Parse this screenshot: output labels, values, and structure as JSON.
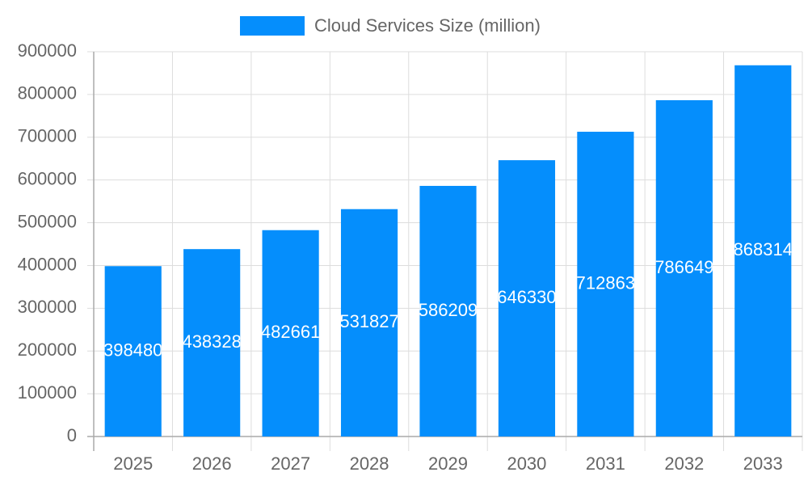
{
  "chart_data": {
    "type": "bar",
    "legend_label": "Cloud Services Size (million)",
    "categories": [
      "2025",
      "2026",
      "2027",
      "2028",
      "2029",
      "2030",
      "2031",
      "2032",
      "2033"
    ],
    "values": [
      398480,
      438328,
      482661,
      531827,
      586209,
      646330,
      712863,
      786649,
      868314
    ],
    "color": "#058efc",
    "ylim": [
      0,
      900000
    ],
    "yticks": [
      0,
      100000,
      200000,
      300000,
      400000,
      500000,
      600000,
      700000,
      800000,
      900000
    ],
    "grid": true,
    "legend_position": "top"
  }
}
